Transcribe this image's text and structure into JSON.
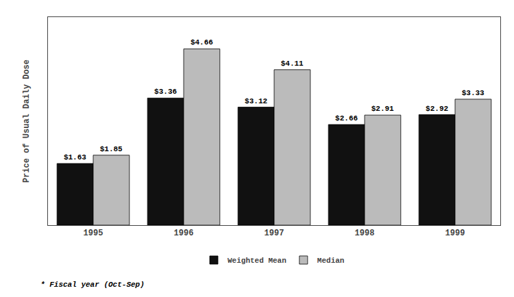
{
  "chart_data": {
    "type": "bar",
    "categories": [
      "1995",
      "1996",
      "1997",
      "1998",
      "1999"
    ],
    "series": [
      {
        "name": "Weighted Mean",
        "color": "#111111",
        "values": [
          1.63,
          3.36,
          3.12,
          2.66,
          2.92
        ],
        "value_labels": [
          "$1.63",
          "$3.36",
          "$3.12",
          "$2.66",
          "$2.92"
        ]
      },
      {
        "name": "Median",
        "color": "#bbbbbb",
        "values": [
          1.85,
          4.66,
          4.11,
          2.91,
          3.33
        ],
        "value_labels": [
          "$1.85",
          "$4.66",
          "$4.11",
          "$2.91",
          "$3.33"
        ]
      }
    ],
    "ylabel": "Price of Usual Daily Dose",
    "ylim": [
      0,
      5.5
    ],
    "tick_labels": "x",
    "grid": false,
    "legend": "bottom",
    "data_labels": true,
    "annotations": [
      "* Fiscal year (Oct-Sep)"
    ]
  }
}
